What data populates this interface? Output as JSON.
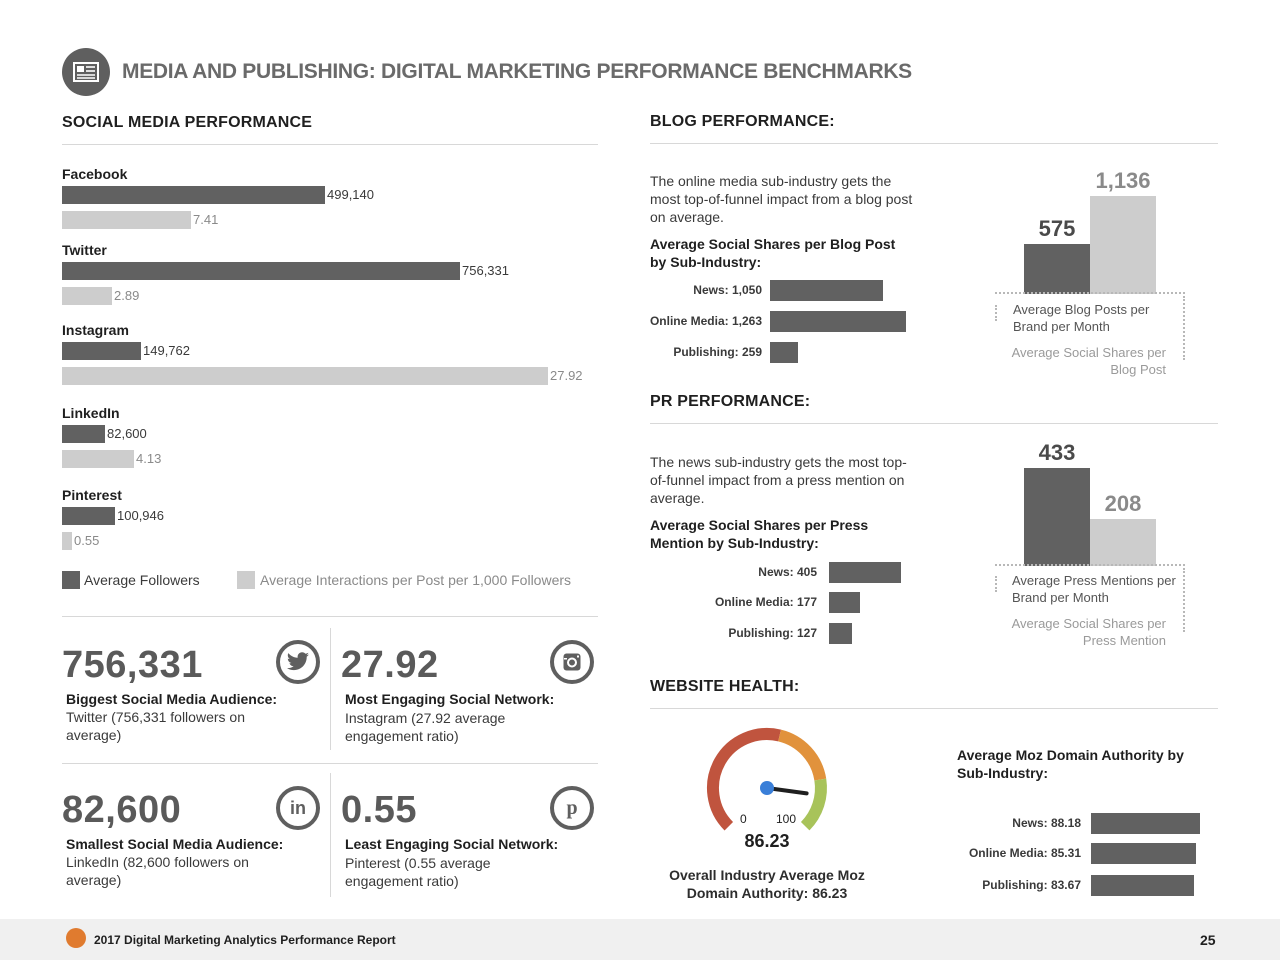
{
  "page": {
    "title": "MEDIA AND PUBLISHING: DIGITAL MARKETING PERFORMANCE BENCHMARKS",
    "icon": "newspaper-icon"
  },
  "social": {
    "section_title": "SOCIAL MEDIA PERFORMANCE",
    "networks": [
      {
        "name": "Facebook",
        "followers_label": "499,140",
        "interactions_label": "7.41"
      },
      {
        "name": "Twitter",
        "followers_label": "756,331",
        "interactions_label": "2.89"
      },
      {
        "name": "Instagram",
        "followers_label": "149,762",
        "interactions_label": "27.92"
      },
      {
        "name": "LinkedIn",
        "followers_label": "82,600",
        "interactions_label": "4.13"
      },
      {
        "name": "Pinterest",
        "followers_label": "100,946",
        "interactions_label": "0.55"
      }
    ],
    "legend": {
      "followers": "Average Followers",
      "interactions": "Average Interactions per Post per 1,000 Followers"
    }
  },
  "chart_data": [
    {
      "type": "bar",
      "orientation": "horizontal",
      "categories": [
        "Facebook",
        "Twitter",
        "Instagram",
        "LinkedIn",
        "Pinterest"
      ],
      "series": [
        {
          "name": "Average Followers",
          "values": [
            499140,
            756331,
            149762,
            82600,
            100946
          ],
          "color": "#616161"
        },
        {
          "name": "Average Interactions per Post per 1,000 Followers",
          "values": [
            7.41,
            2.89,
            27.92,
            4.13,
            0.55
          ],
          "color": "#cdcdcd"
        }
      ]
    },
    {
      "type": "bar",
      "orientation": "horizontal",
      "title": "Average Social Shares per Blog Post by Sub-Industry:",
      "categories": [
        "News",
        "Online Media",
        "Publishing"
      ],
      "values": [
        1050,
        1263,
        259
      ]
    },
    {
      "type": "bar",
      "categories": [
        "Average Blog Posts per Brand per Month",
        "Average Social Shares per Blog Post"
      ],
      "values": [
        575,
        1136
      ]
    },
    {
      "type": "bar",
      "orientation": "horizontal",
      "title": "Average Social Shares per Press Mention by Sub-Industry:",
      "categories": [
        "News",
        "Online Media",
        "Publishing"
      ],
      "values": [
        405,
        177,
        127
      ]
    },
    {
      "type": "bar",
      "categories": [
        "Average Press Mentions per Brand per Month",
        "Average Social Shares per Press Mention"
      ],
      "values": [
        433,
        208
      ]
    },
    {
      "type": "bar",
      "orientation": "horizontal",
      "title": "Average Moz Domain Authority by Sub-Industry:",
      "categories": [
        "News",
        "Online Media",
        "Publishing"
      ],
      "values": [
        88.18,
        85.31,
        83.67
      ]
    },
    {
      "type": "gauge",
      "min": 0,
      "max": 100,
      "value": 86.23
    }
  ],
  "stats": [
    {
      "number": "756,331",
      "title": "Biggest Social Media Audience:",
      "desc": "Twitter (756,331 followers on average)",
      "icon": "twitter-icon"
    },
    {
      "number": "27.92",
      "title": "Most Engaging Social Network:",
      "desc": "Instagram (27.92 average engagement ratio)",
      "icon": "instagram-icon"
    },
    {
      "number": "82,600",
      "title": "Smallest Social Media Audience:",
      "desc": "LinkedIn (82,600 followers on average)",
      "icon": "linkedin-icon"
    },
    {
      "number": "0.55",
      "title": "Least Engaging Social Network:",
      "desc": "Pinterest (0.55 average engagement ratio)",
      "icon": "pinterest-icon"
    }
  ],
  "blog": {
    "section_title": "BLOG PERFORMANCE:",
    "intro": "The online media sub-industry gets the most top-of-funnel impact from a blog post on average.",
    "chart_title": "Average Social Shares per Blog Post by Sub-Industry:",
    "bars": [
      {
        "label": "News: 1,050"
      },
      {
        "label": "Online Media: 1,263"
      },
      {
        "label": "Publishing: 259"
      }
    ],
    "col_values": [
      "575",
      "1,136"
    ],
    "col_label_dark": "Average Blog Posts per Brand per Month",
    "col_label_light": "Average Social Shares per Blog Post"
  },
  "pr": {
    "section_title": "PR PERFORMANCE:",
    "intro": "The news sub-industry gets the most top-of-funnel impact from a press mention on average.",
    "chart_title": "Average Social Shares per Press Mention by Sub-Industry:",
    "bars": [
      {
        "label": "News: 405"
      },
      {
        "label": "Online Media: 177"
      },
      {
        "label": "Publishing: 127"
      }
    ],
    "col_values": [
      "433",
      "208"
    ],
    "col_label_dark": "Average Press Mentions per Brand per Month",
    "col_label_light": "Average Social Shares per Press Mention"
  },
  "website": {
    "section_title": "WEBSITE HEALTH:",
    "gauge_min": "0",
    "gauge_max": "100",
    "gauge_value": "86.23",
    "gauge_caption": "Overall Industry Average Moz Domain Authority: 86.23",
    "chart_title": "Average Moz Domain Authority by Sub-Industry:",
    "bars": [
      {
        "label": "News: 88.18"
      },
      {
        "label": "Online Media: 85.31"
      },
      {
        "label": "Publishing: 83.67"
      }
    ]
  },
  "footer": {
    "report": "2017 Digital Marketing Analytics Performance Report",
    "page_number": "25"
  },
  "colors": {
    "dark_bar": "#616161",
    "light_bar": "#cdcdcd",
    "gauge_red": "#c0543e",
    "gauge_orange": "#e1923c",
    "gauge_green": "#a8c35a",
    "needle_dot": "#3a7fd8"
  }
}
